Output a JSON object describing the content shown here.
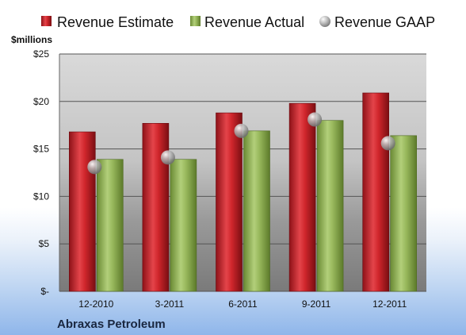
{
  "colors": {
    "estimate": "#c0202a",
    "actual": "#8fb050",
    "gaap": "#c8c8c8"
  },
  "chart_data": {
    "type": "bar",
    "company": "Abraxas Petroleum",
    "unit_label": "$millions",
    "categories": [
      "12-2010",
      "3-2011",
      "6-2011",
      "9-2011",
      "12-2011"
    ],
    "series": [
      {
        "name": "Revenue Estimate",
        "marker": "bar",
        "values": [
          16.8,
          17.7,
          18.8,
          19.8,
          20.9
        ]
      },
      {
        "name": "Revenue Actual",
        "marker": "bar",
        "values": [
          13.9,
          13.9,
          16.9,
          18.0,
          16.4
        ]
      },
      {
        "name": "Revenue GAAP",
        "marker": "bubble",
        "values": [
          13.1,
          14.1,
          16.9,
          18.1,
          15.6
        ]
      }
    ],
    "ylim": [
      0,
      25
    ],
    "yticks": [
      0,
      5,
      10,
      15,
      20,
      25
    ],
    "ytick_labels": [
      "$-",
      "$5",
      "$10",
      "$15",
      "$20",
      "$25"
    ],
    "grid": true,
    "legend_position": "top"
  }
}
